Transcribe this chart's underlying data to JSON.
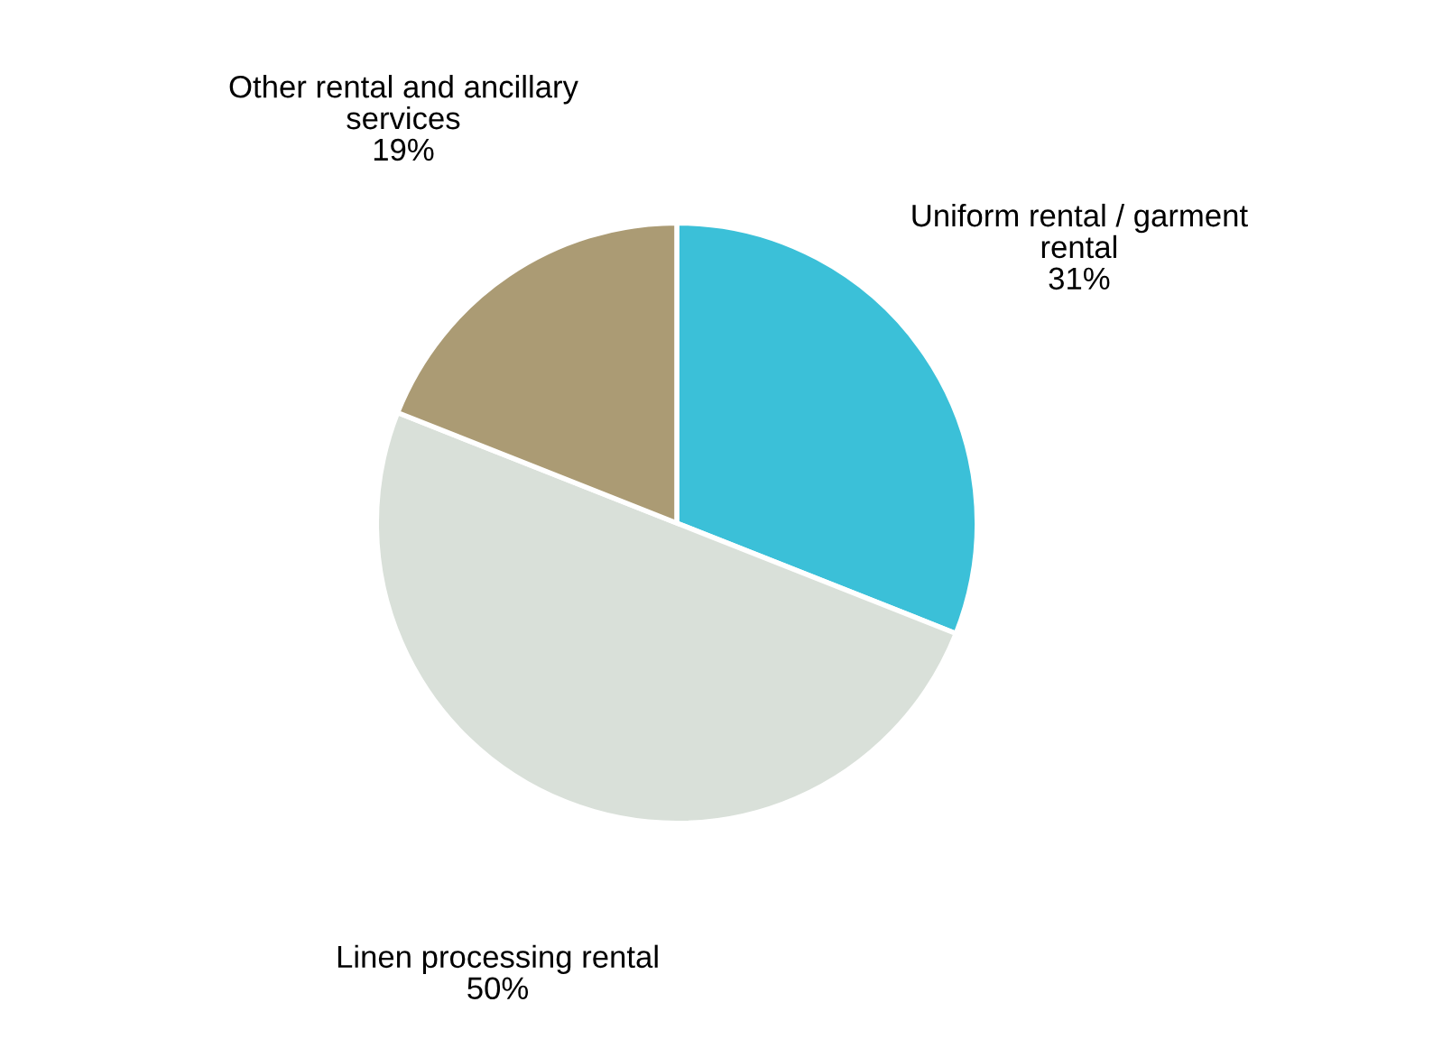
{
  "chart_data": {
    "type": "pie",
    "categories": [
      "Uniform rental / garment\nrental",
      "Linen processing rental",
      "Other rental and ancillary\nservices"
    ],
    "values": [
      31,
      50,
      19
    ],
    "colors": [
      "#3bc0d8",
      "#d9e0d9",
      "#ab9b74"
    ],
    "value_labels": [
      "31%",
      "50%",
      "19%"
    ],
    "legend": false
  }
}
